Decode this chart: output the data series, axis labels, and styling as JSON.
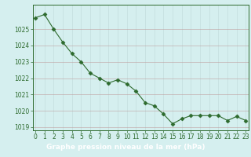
{
  "hours": [
    0,
    1,
    2,
    3,
    4,
    5,
    6,
    7,
    8,
    9,
    10,
    11,
    12,
    13,
    14,
    15,
    16,
    17,
    18,
    19,
    20,
    21,
    22,
    23
  ],
  "pressure": [
    1025.7,
    1025.9,
    1025.0,
    1024.2,
    1023.5,
    1023.0,
    1022.3,
    1022.0,
    1021.7,
    1021.9,
    1021.65,
    1021.2,
    1020.5,
    1020.3,
    1019.8,
    1019.2,
    1019.5,
    1019.7,
    1019.7,
    1019.7,
    1019.7,
    1019.4,
    1019.65,
    1019.4
  ],
  "line_color": "#2d6a2d",
  "marker": "D",
  "marker_size": 2.5,
  "bg_color": "#d5efef",
  "fig_bg_color": "#d5efef",
  "grid_major_color": "#b0cece",
  "grid_minor_color": "#c8e4e4",
  "xlabel": "Graphe pression niveau de la mer (hPa)",
  "xlabel_bar_color": "#3a8a3a",
  "xlabel_text_color": "#ffffff",
  "ylim": [
    1018.8,
    1026.5
  ],
  "yticks": [
    1019,
    1020,
    1021,
    1022,
    1023,
    1024,
    1025
  ],
  "tick_color": "#2d6a2d",
  "tick_fontsize": 5.5,
  "label_fontsize": 6.5,
  "spine_color": "#2d6a2d",
  "linewidth": 0.8
}
